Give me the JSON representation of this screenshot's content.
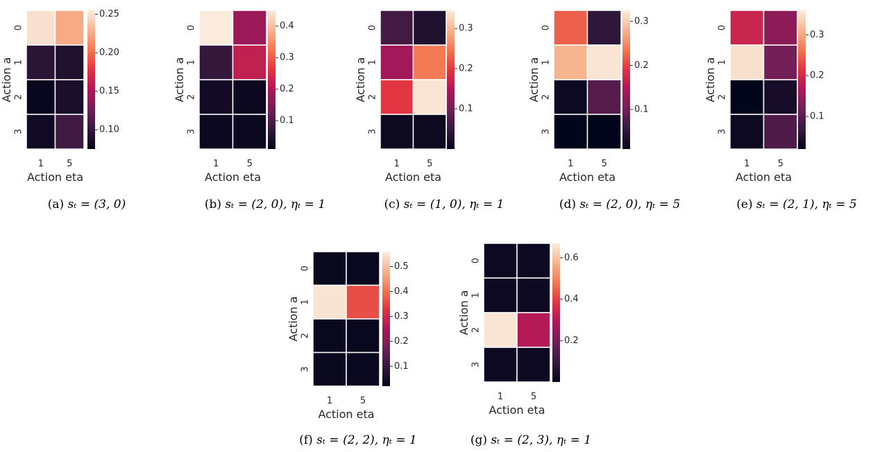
{
  "colormap": {
    "name": "rocket",
    "stops": [
      "#03051a",
      "#35193e",
      "#701f57",
      "#ad1759",
      "#e13342",
      "#f37651",
      "#f6b48f",
      "#faebdd"
    ]
  },
  "chart_data": [
    {
      "type": "heatmap",
      "xlabel": "Action eta",
      "ylabel": "Action a",
      "x_categories": [
        "1",
        "5"
      ],
      "y_categories": [
        "0",
        "1",
        "2",
        "3"
      ],
      "values": [
        [
          0.25,
          0.225
        ],
        [
          0.095,
          0.09
        ],
        [
          0.078,
          0.087
        ],
        [
          0.082,
          0.105
        ]
      ],
      "colorbar": {
        "range": [
          0.075,
          0.255
        ],
        "ticks": [
          0.1,
          0.15,
          0.2,
          0.25
        ],
        "tick_labels": [
          "0.10",
          "0.15",
          "0.20",
          "0.25"
        ]
      },
      "caption": {
        "prefix": "(a) ",
        "math": "sₜ = (3, 0)"
      }
    },
    {
      "type": "heatmap",
      "xlabel": "Action eta",
      "ylabel": "Action a",
      "x_categories": [
        "1",
        "5"
      ],
      "y_categories": [
        "0",
        "1",
        "2",
        "3"
      ],
      "values": [
        [
          0.45,
          0.18
        ],
        [
          0.07,
          0.22
        ],
        [
          0.03,
          0.02
        ],
        [
          0.02,
          0.02
        ]
      ],
      "colorbar": {
        "range": [
          0.01,
          0.45
        ],
        "ticks": [
          0.1,
          0.2,
          0.3,
          0.4
        ],
        "tick_labels": [
          "0.1",
          "0.2",
          "0.3",
          "0.4"
        ]
      },
      "caption": {
        "prefix": "(b) ",
        "math": "sₜ = (2, 0),  ηₜ = 1"
      }
    },
    {
      "type": "heatmap",
      "xlabel": "Action eta",
      "ylabel": "Action a",
      "x_categories": [
        "1",
        "5"
      ],
      "y_categories": [
        "0",
        "1",
        "2",
        "3"
      ],
      "values": [
        [
          0.06,
          0.03
        ],
        [
          0.14,
          0.25
        ],
        [
          0.2,
          0.34
        ],
        [
          0.01,
          0.01
        ]
      ],
      "colorbar": {
        "range": [
          0.0,
          0.345
        ],
        "ticks": [
          0.1,
          0.2,
          0.3
        ],
        "tick_labels": [
          "0.1",
          "0.2",
          "0.3"
        ]
      },
      "caption": {
        "prefix": "(c) ",
        "math": "sₜ = (1, 0),  ηₜ = 1"
      }
    },
    {
      "type": "heatmap",
      "xlabel": "Action eta",
      "ylabel": "Action a",
      "x_categories": [
        "1",
        "5"
      ],
      "y_categories": [
        "0",
        "1",
        "2",
        "3"
      ],
      "values": [
        [
          0.22,
          0.05
        ],
        [
          0.28,
          0.32
        ],
        [
          0.02,
          0.08
        ],
        [
          0.01,
          0.01
        ]
      ],
      "colorbar": {
        "range": [
          0.01,
          0.325
        ],
        "ticks": [
          0.1,
          0.2,
          0.3
        ],
        "tick_labels": [
          "0.1",
          "0.2",
          "0.3"
        ]
      },
      "caption": {
        "prefix": "(d) ",
        "math": "sₜ = (2, 0),  ηₜ = 5"
      }
    },
    {
      "type": "heatmap",
      "xlabel": "Action eta",
      "ylabel": "Action a",
      "x_categories": [
        "1",
        "5"
      ],
      "y_categories": [
        "0",
        "1",
        "2",
        "3"
      ],
      "values": [
        [
          0.19,
          0.14
        ],
        [
          0.35,
          0.12
        ],
        [
          0.02,
          0.04
        ],
        [
          0.03,
          0.09
        ]
      ],
      "colorbar": {
        "range": [
          0.02,
          0.36
        ],
        "ticks": [
          0.1,
          0.2,
          0.3
        ],
        "tick_labels": [
          "0.1",
          "0.2",
          "0.3"
        ]
      },
      "caption": {
        "prefix": "(e) ",
        "math": "sₜ = (2, 1),  ηₜ = 5"
      }
    },
    {
      "type": "heatmap",
      "xlabel": "Action eta",
      "ylabel": "Action a",
      "x_categories": [
        "1",
        "5"
      ],
      "y_categories": [
        "0",
        "1",
        "2",
        "3"
      ],
      "values": [
        [
          0.03,
          0.03
        ],
        [
          0.55,
          0.36
        ],
        [
          0.03,
          0.03
        ],
        [
          0.03,
          0.03
        ]
      ],
      "colorbar": {
        "range": [
          0.02,
          0.56
        ],
        "ticks": [
          0.1,
          0.2,
          0.3,
          0.4,
          0.5
        ],
        "tick_labels": [
          "0.1",
          "0.2",
          "0.3",
          "0.4",
          "0.5"
        ]
      },
      "caption": {
        "prefix": "(f) ",
        "math": "sₜ = (2, 2),  ηₜ = 1"
      }
    },
    {
      "type": "heatmap",
      "xlabel": "Action eta",
      "ylabel": "Action a",
      "x_categories": [
        "1",
        "5"
      ],
      "y_categories": [
        "0",
        "1",
        "2",
        "3"
      ],
      "values": [
        [
          0.02,
          0.02
        ],
        [
          0.02,
          0.02
        ],
        [
          0.66,
          0.3
        ],
        [
          0.02,
          0.02
        ]
      ],
      "colorbar": {
        "range": [
          0.0,
          0.67
        ],
        "ticks": [
          0.2,
          0.4,
          0.6
        ],
        "tick_labels": [
          "0.2",
          "0.4",
          "0.6"
        ]
      },
      "caption": {
        "prefix": "(g) ",
        "math": "sₜ = (2, 3),  ηₜ = 1"
      }
    }
  ]
}
